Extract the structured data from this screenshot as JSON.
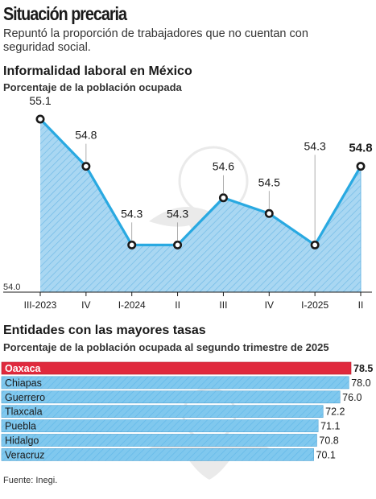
{
  "header": {
    "title": "Situación precaria",
    "subtitle": "Repuntó la proporción de trabajadores que no cuentan con seguridad social."
  },
  "source": "Fuente: Inegi.",
  "colors": {
    "line": "#29a9e1",
    "area_fill": "#a9d7f2",
    "area_hatch": "#6fb9e6",
    "bar_fill": "#4fb6ea",
    "bar_highlight": "#e0293d",
    "marker_stroke": "#1a1a1a"
  },
  "chart_data": [
    {
      "type": "area",
      "title": "Informalidad laboral en México",
      "subtitle": "Porcentaje de la población ocupada",
      "categories": [
        "III-2023",
        "IV",
        "I-2024",
        "II",
        "III",
        "IV",
        "I-2025",
        "II"
      ],
      "values": [
        55.1,
        54.8,
        54.3,
        54.3,
        54.6,
        54.5,
        54.3,
        54.8
      ],
      "data_labels": [
        "55.1",
        "54.8",
        "54.3",
        "54.3",
        "54.6",
        "54.5",
        "54.3",
        "54.8"
      ],
      "y_min_label": "54.0",
      "ylim": [
        54.0,
        55.2
      ],
      "highlight_last": true,
      "grid": false
    },
    {
      "type": "bar",
      "orientation": "horizontal",
      "title": "Entidades con las mayores tasas",
      "subtitle": "Porcentaje de la población ocupada al segundo trimestre de 2025",
      "categories": [
        "Oaxaca",
        "Chiapas",
        "Guerrero",
        "Tlaxcala",
        "Puebla",
        "Hidalgo",
        "Veracruz"
      ],
      "values": [
        78.5,
        78.0,
        76.0,
        72.2,
        71.1,
        70.8,
        70.1
      ],
      "data_labels": [
        "78.5",
        "78.0",
        "76.0",
        "72.2",
        "71.1",
        "70.8",
        "70.1"
      ],
      "highlight": "Oaxaca",
      "grid": false
    }
  ]
}
